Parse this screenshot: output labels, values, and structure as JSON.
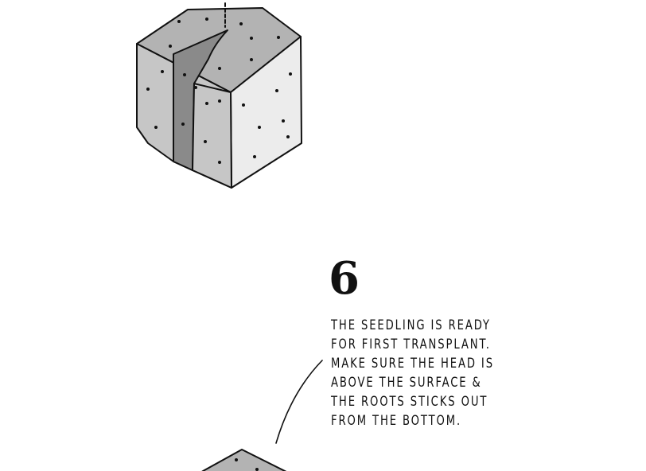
{
  "step": {
    "number": "6",
    "lines": [
      "THE SEEDLING IS READY",
      "FOR FIRST TRANSPLANT.",
      "MAKE SURE THE HEAD IS",
      "ABOVE THE SURFACE &",
      "THE ROOTS STICKS OUT",
      "FROM THE  BOTTOM."
    ]
  },
  "colors": {
    "ink": "#111111",
    "block_top": "#b3b3b3",
    "block_left": "#c4c4c4",
    "block_right": "#ececec",
    "slot_inner": "#8c8c8c"
  }
}
